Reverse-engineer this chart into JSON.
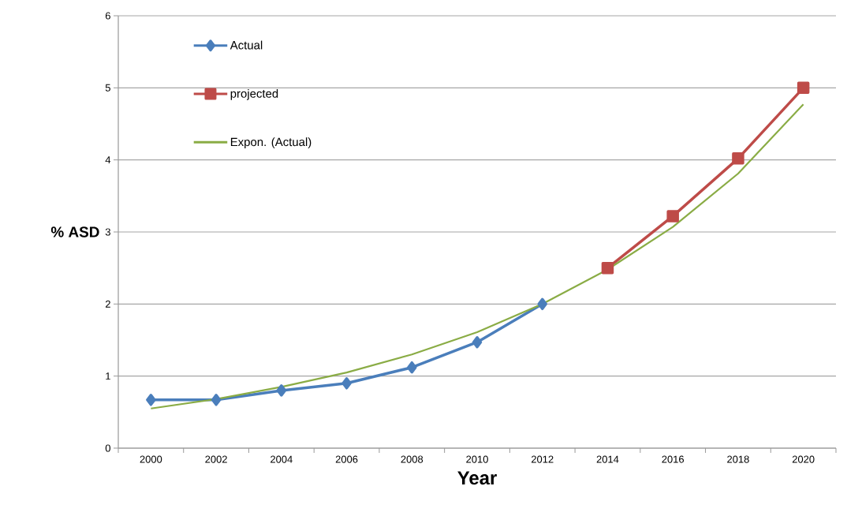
{
  "chart_data": {
    "type": "line",
    "xlabel": "Year",
    "ylabel": "% ASD",
    "categories": [
      "2000",
      "2002",
      "2004",
      "2006",
      "2008",
      "2010",
      "2012",
      "2014",
      "2016",
      "2018",
      "2020"
    ],
    "series": [
      {
        "name": "Actual",
        "color": "#4a7ebb",
        "marker": "diamond",
        "values": [
          0.67,
          0.67,
          0.8,
          0.9,
          1.12,
          1.47,
          2.0,
          null,
          null,
          null,
          null
        ]
      },
      {
        "name": "projected",
        "color": "#be4b48",
        "marker": "square",
        "values": [
          null,
          null,
          null,
          null,
          null,
          null,
          null,
          2.5,
          3.22,
          4.02,
          5.0
        ]
      },
      {
        "name": "Expon. (Actual)",
        "color": "#8aac45",
        "marker": "none",
        "values": [
          0.55,
          0.68,
          0.85,
          1.05,
          1.3,
          1.61,
          2.0,
          2.48,
          3.07,
          3.81,
          4.77
        ]
      }
    ],
    "ylim": [
      0,
      6
    ],
    "yticks": [
      0,
      1,
      2,
      3,
      4,
      5,
      6
    ],
    "grid": "y",
    "legend": "top left",
    "line_style": "solid"
  }
}
